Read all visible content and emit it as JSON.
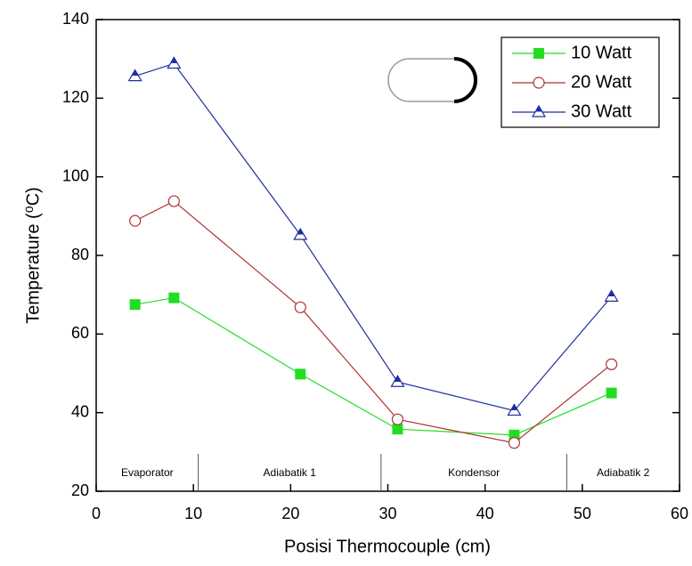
{
  "chart_data": {
    "type": "line",
    "x_label": "Posisi Thermocouple (cm)",
    "y_label": "Temperature (⁰C)",
    "x": [
      4,
      8,
      21,
      31,
      43,
      53
    ],
    "series": [
      {
        "name": "10 Watt",
        "color": "#22dd22",
        "marker": "square",
        "values": [
          67.5,
          69.2,
          49.8,
          35.8,
          34.3,
          45.0
        ]
      },
      {
        "name": "20 Watt",
        "color": "#b03030",
        "marker": "circle",
        "values": [
          88.8,
          93.8,
          66.8,
          38.3,
          32.3,
          52.3
        ]
      },
      {
        "name": "30 Watt",
        "color": "#1f2fa0",
        "marker": "triangle",
        "values": [
          125.6,
          128.8,
          85.2,
          47.8,
          40.5,
          69.5
        ]
      }
    ],
    "xlim": [
      0,
      60
    ],
    "xticks": [
      0,
      10,
      20,
      30,
      40,
      50,
      60
    ],
    "ylim": [
      20,
      140
    ],
    "yticks": [
      20,
      40,
      60,
      80,
      100,
      120,
      140
    ],
    "regions": [
      {
        "label": "Evaporator",
        "from": 0,
        "to": 10.5
      },
      {
        "label": "Adiabatik 1",
        "from": 10.5,
        "to": 29.3
      },
      {
        "label": "Kondensor",
        "from": 29.3,
        "to": 48.4
      },
      {
        "label": "Adiabatik 2",
        "from": 48.4,
        "to": 60
      }
    ],
    "legend": "upper right"
  }
}
